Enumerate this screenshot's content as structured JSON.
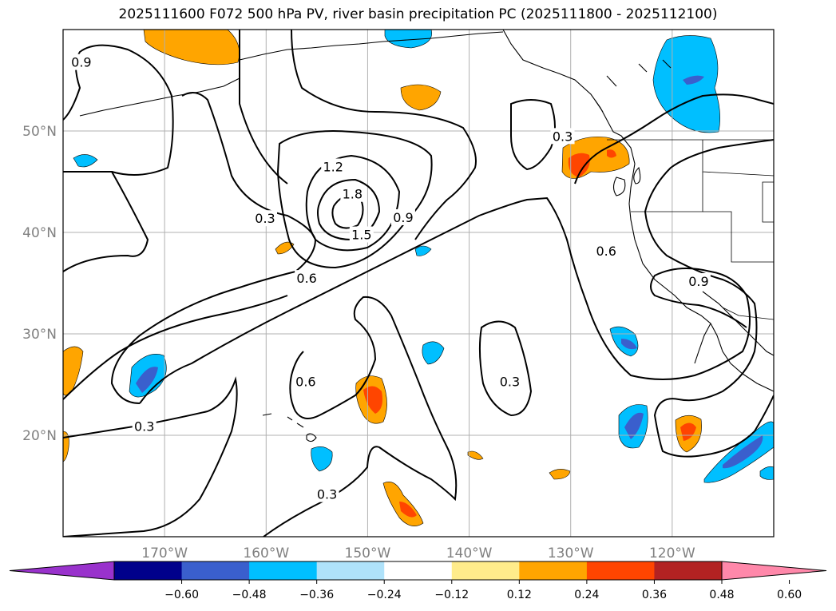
{
  "title": "2025111600 F072 500 hPa PV, river basin precipitation PC (2025111800 - 2025112100)",
  "map": {
    "lon_range": [
      -180,
      -110
    ],
    "lat_range": [
      10,
      60
    ],
    "lat_ticks": [
      {
        "value": 20,
        "label": "20°N"
      },
      {
        "value": 30,
        "label": "30°N"
      },
      {
        "value": 40,
        "label": "40°N"
      },
      {
        "value": 50,
        "label": "50°N"
      }
    ],
    "lon_ticks": [
      {
        "value": -170,
        "label": "170°W"
      },
      {
        "value": -160,
        "label": "160°W"
      },
      {
        "value": -150,
        "label": "150°W"
      },
      {
        "value": -140,
        "label": "140°W"
      },
      {
        "value": -130,
        "label": "130°W"
      },
      {
        "value": -120,
        "label": "120°W"
      }
    ],
    "grid": true,
    "pv_contour_labels": [
      {
        "text": "0.9",
        "lon": -178.2,
        "lat": 56.8
      },
      {
        "text": "1.2",
        "lon": -153.4,
        "lat": 46.5
      },
      {
        "text": "1.8",
        "lon": -151.5,
        "lat": 43.8
      },
      {
        "text": "1.5",
        "lon": -150.6,
        "lat": 39.8
      },
      {
        "text": "0.9",
        "lon": -146.5,
        "lat": 41.5
      },
      {
        "text": "0.3",
        "lon": -160.1,
        "lat": 41.4
      },
      {
        "text": "0.6",
        "lon": -156.0,
        "lat": 35.5
      },
      {
        "text": "0.6",
        "lon": -156.1,
        "lat": 25.3
      },
      {
        "text": "0.3",
        "lon": -172.0,
        "lat": 20.9
      },
      {
        "text": "0.3",
        "lon": -154.0,
        "lat": 14.2
      },
      {
        "text": "0.3",
        "lon": -130.8,
        "lat": 49.5
      },
      {
        "text": "0.6",
        "lon": -126.5,
        "lat": 38.2
      },
      {
        "text": "0.9",
        "lon": -117.4,
        "lat": 35.2
      },
      {
        "text": "0.3",
        "lon": -136.0,
        "lat": 25.3
      }
    ]
  },
  "colorbar": {
    "colors": [
      "#9932cc",
      "#00008b",
      "#3a5fcd",
      "#00bfff",
      "#afe2fa",
      "#ffffff",
      "#ffec8b",
      "#ffa500",
      "#ff4500",
      "#b22222",
      "#ff88aa"
    ],
    "tick_labels": [
      "−0.60",
      "−0.48",
      "−0.36",
      "−0.24",
      "−0.12",
      "0.12",
      "0.24",
      "0.36",
      "0.48",
      "0.60"
    ]
  }
}
